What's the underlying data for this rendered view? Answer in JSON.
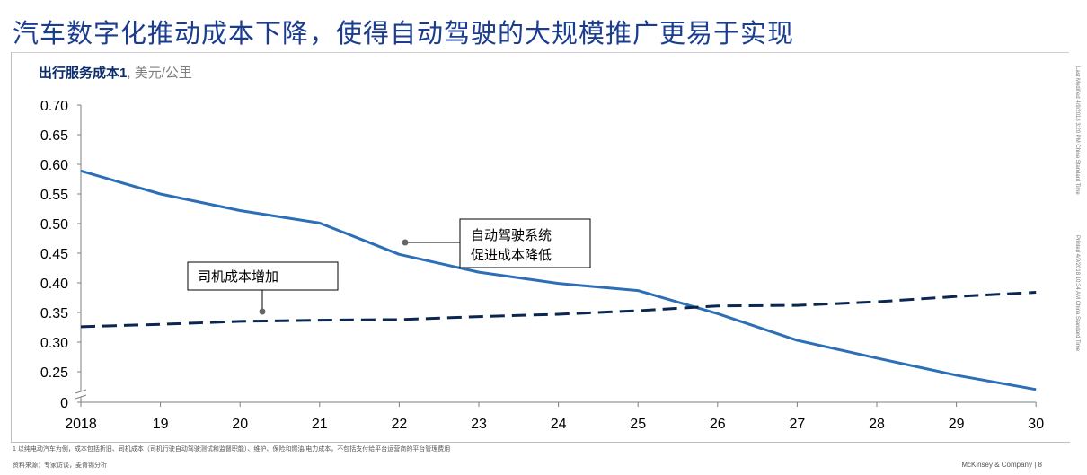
{
  "header": {
    "title": "汽车数字化推动成本下降，使得自动驾驶的大规模推广更易于实现"
  },
  "chart_data": {
    "type": "line",
    "title": "出行服务成本",
    "title_sup": "1",
    "unit": ", 美元/公里",
    "x": [
      "2018",
      "19",
      "20",
      "21",
      "22",
      "23",
      "24",
      "25",
      "26",
      "27",
      "28",
      "29",
      "30"
    ],
    "ylim": [
      0.2,
      0.7
    ],
    "yticks": [
      "0.70",
      "0.65",
      "0.60",
      "0.55",
      "0.50",
      "0.45",
      "0.40",
      "0.35",
      "0.30",
      "0.25",
      "0"
    ],
    "y_axis_break": true,
    "grid": false,
    "series": [
      {
        "name": "自动驾驶系统",
        "style": "solid",
        "color": "#2c6fb7",
        "values": [
          0.589,
          0.55,
          0.522,
          0.501,
          0.448,
          0.418,
          0.399,
          0.387,
          0.348,
          0.303,
          0.273,
          0.244,
          0.22
        ]
      },
      {
        "name": "司机成本增加",
        "style": "dashed",
        "color": "#0b2650",
        "values": [
          0.326,
          0.33,
          0.335,
          0.337,
          0.338,
          0.343,
          0.347,
          0.353,
          0.361,
          0.362,
          0.368,
          0.377,
          0.384
        ]
      }
    ],
    "annotations": [
      {
        "lines": [
          "自动驾驶系统",
          "促进成本降低"
        ]
      },
      {
        "lines": [
          "司机成本增加"
        ]
      }
    ]
  },
  "footer": {
    "footnote": "1 以纯电动汽车为例，成本包括折旧、司机成本（司机行驶自动驾驶测试和监督职能）、维护、保险和燃油/电力成本，不包括支付给平台运营商的平台管理费用",
    "source": "资料来源：专家访谈，麦肯锡分析",
    "brand": "McKinsey & Company",
    "page": "8",
    "side_note_1": "Last Modified 4/9/2018 3:20 PM China Standard Time",
    "side_note_2": "Printed 4/9/2018 10:34 AM China Standard Time"
  }
}
